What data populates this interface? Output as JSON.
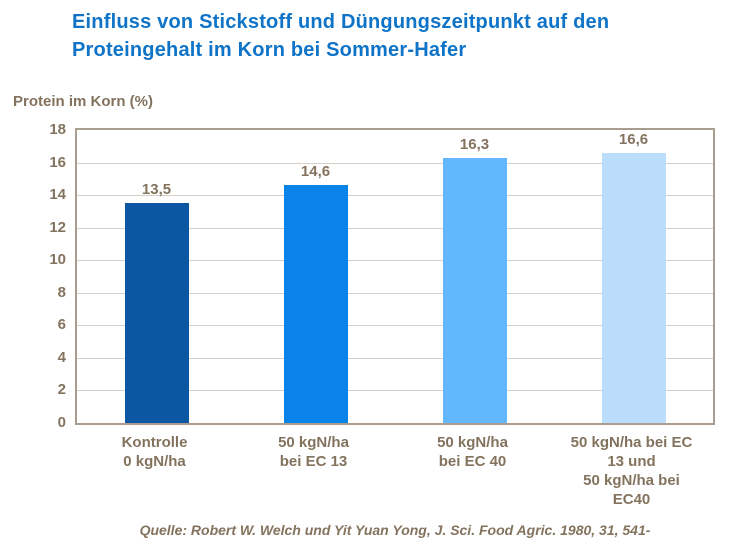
{
  "title_line1": "Einfluss von Stickstoff und Düngungszeitpunkt auf den",
  "title_line2": "Proteingehalt im Korn bei Sommer-Hafer",
  "source_line": "Quelle: Robert W. Welch und Yit Yuan Yong, J. Sci. Food Agric. 1980, 31, 541-",
  "colors": {
    "title_blue": "#0f74c8",
    "label_brown": "#83735e",
    "grid_gray": "#d6d0c8",
    "border_gray": "#a89d8e"
  },
  "chart_data": {
    "type": "bar",
    "title": "Einfluss von Stickstoff und Düngungszeitpunkt auf den Proteingehalt im Korn bei Sommer-Hafer",
    "ylabel": "Protein im Korn (%)",
    "xlabel": "",
    "ylim": [
      0,
      18
    ],
    "yticks": [
      0,
      2,
      4,
      6,
      8,
      10,
      12,
      14,
      16,
      18
    ],
    "grid": true,
    "legend": false,
    "categories": [
      "Kontrolle\n0 kgN/ha",
      "50 kgN/ha\nbei EC 13",
      "50 kgN/ha\nbei EC 40",
      "50 kgN/ha bei EC\n13 und\n50 kgN/ha bei\nEC40"
    ],
    "values": [
      13.5,
      14.6,
      16.3,
      16.6
    ],
    "value_labels": [
      "13,5",
      "14,6",
      "16,3",
      "16,6"
    ],
    "bar_colors": [
      "#0b57a4",
      "#0a84e8",
      "#63b8fd",
      "#b9ddfb"
    ]
  }
}
